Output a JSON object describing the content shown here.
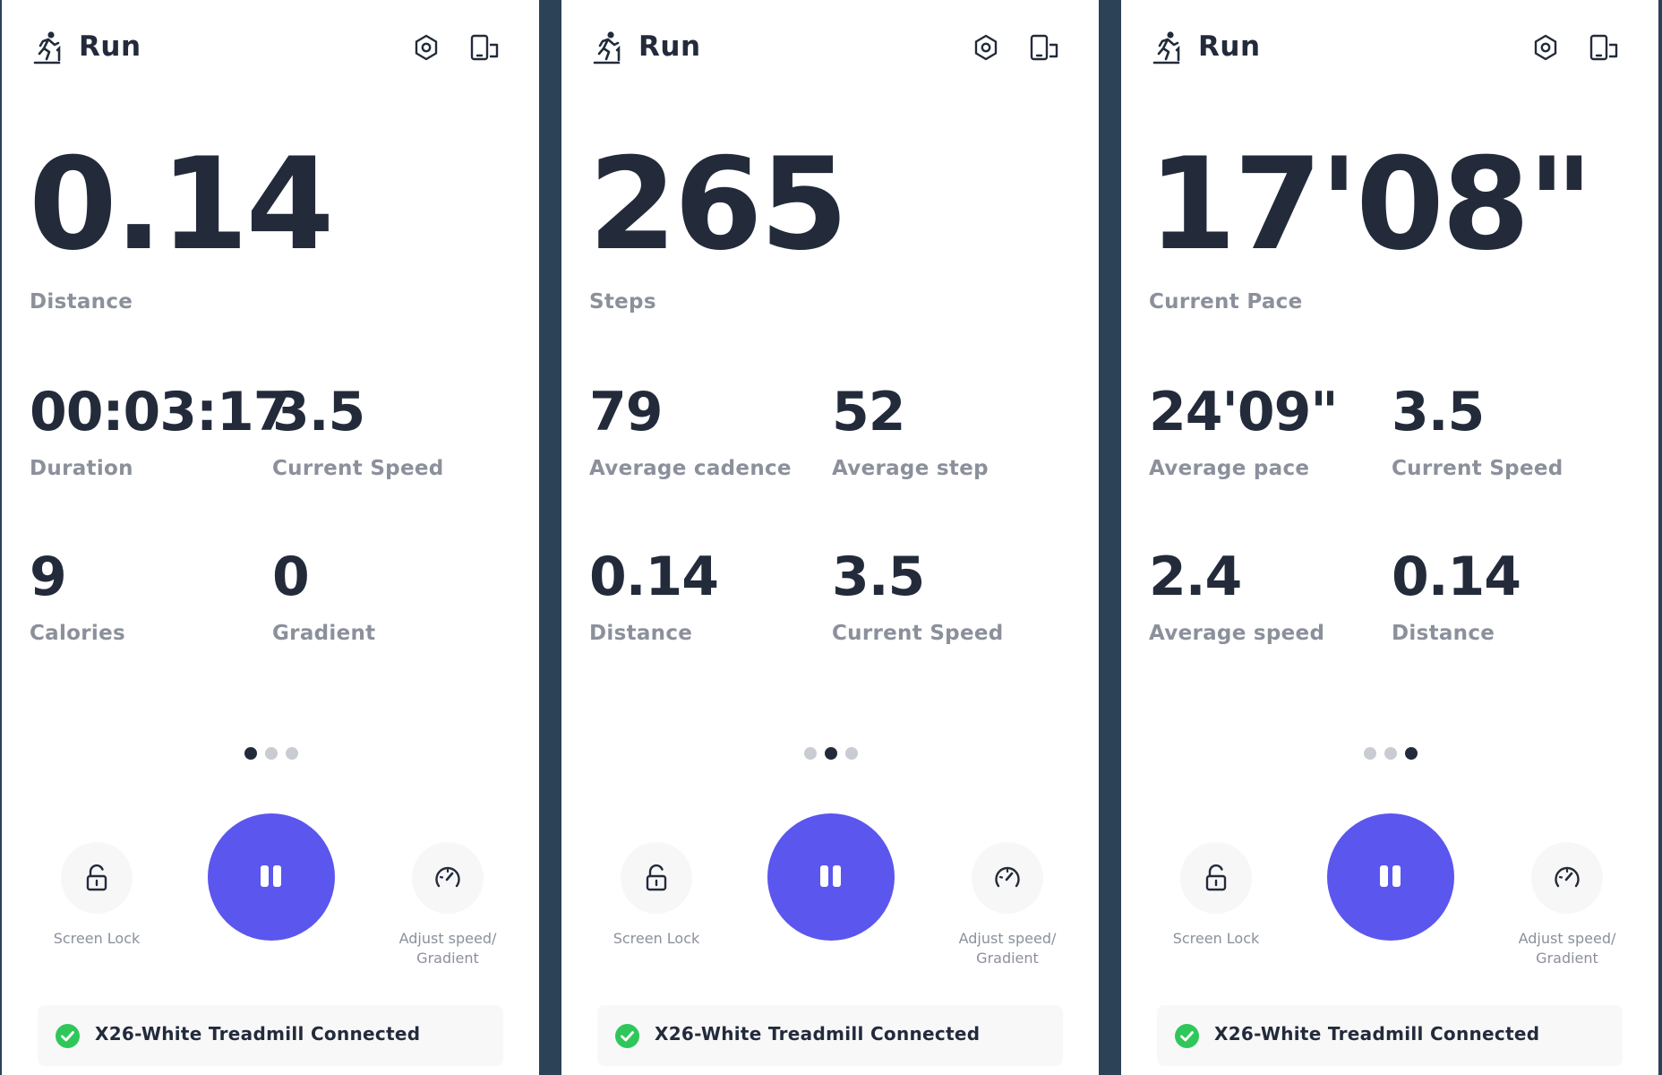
{
  "colors": {
    "accent": "#5b56ee",
    "text_primary": "#232b3b",
    "text_secondary": "#8b909b",
    "success": "#2fc75a",
    "dot_inactive": "#c9ccd2",
    "divider": "#2b4257"
  },
  "icons": {
    "header_left": "treadmill-runner-icon",
    "settings": "hexagon-settings-icon",
    "device": "phone-device-icon",
    "lock": "unlock-icon",
    "speed": "speedometer-icon",
    "pause": "pause-icon",
    "connected": "check-circle-icon"
  },
  "panels": [
    {
      "header": {
        "title": "Run"
      },
      "hero": {
        "value": "0.14",
        "label": "Distance"
      },
      "stats": [
        {
          "value": "00:03:17",
          "label": "Duration"
        },
        {
          "value": "3.5",
          "label": "Current Speed"
        },
        {
          "value": "9",
          "label": "Calories"
        },
        {
          "value": "0",
          "label": "Gradient"
        }
      ],
      "page_index": 0,
      "page_count": 3,
      "controls": {
        "lock_label": "Screen Lock",
        "speed_label_line1": "Adjust speed/",
        "speed_label_line2": "Gradient"
      },
      "connection": {
        "text": "X26-White Treadmill Connected"
      }
    },
    {
      "header": {
        "title": "Run"
      },
      "hero": {
        "value": "265",
        "label": "Steps"
      },
      "stats": [
        {
          "value": "79",
          "label": "Average cadence"
        },
        {
          "value": "52",
          "label": "Average step"
        },
        {
          "value": "0.14",
          "label": "Distance"
        },
        {
          "value": "3.5",
          "label": "Current Speed"
        }
      ],
      "page_index": 1,
      "page_count": 3,
      "controls": {
        "lock_label": "Screen Lock",
        "speed_label_line1": "Adjust speed/",
        "speed_label_line2": "Gradient"
      },
      "connection": {
        "text": "X26-White Treadmill Connected"
      }
    },
    {
      "header": {
        "title": "Run"
      },
      "hero": {
        "value": "17'08\"",
        "label": "Current Pace"
      },
      "stats": [
        {
          "value": "24'09\"",
          "label": "Average pace"
        },
        {
          "value": "3.5",
          "label": "Current Speed"
        },
        {
          "value": "2.4",
          "label": "Average speed"
        },
        {
          "value": "0.14",
          "label": "Distance"
        }
      ],
      "page_index": 2,
      "page_count": 3,
      "controls": {
        "lock_label": "Screen Lock",
        "speed_label_line1": "Adjust speed/",
        "speed_label_line2": "Gradient"
      },
      "connection": {
        "text": "X26-White Treadmill Connected"
      }
    }
  ]
}
